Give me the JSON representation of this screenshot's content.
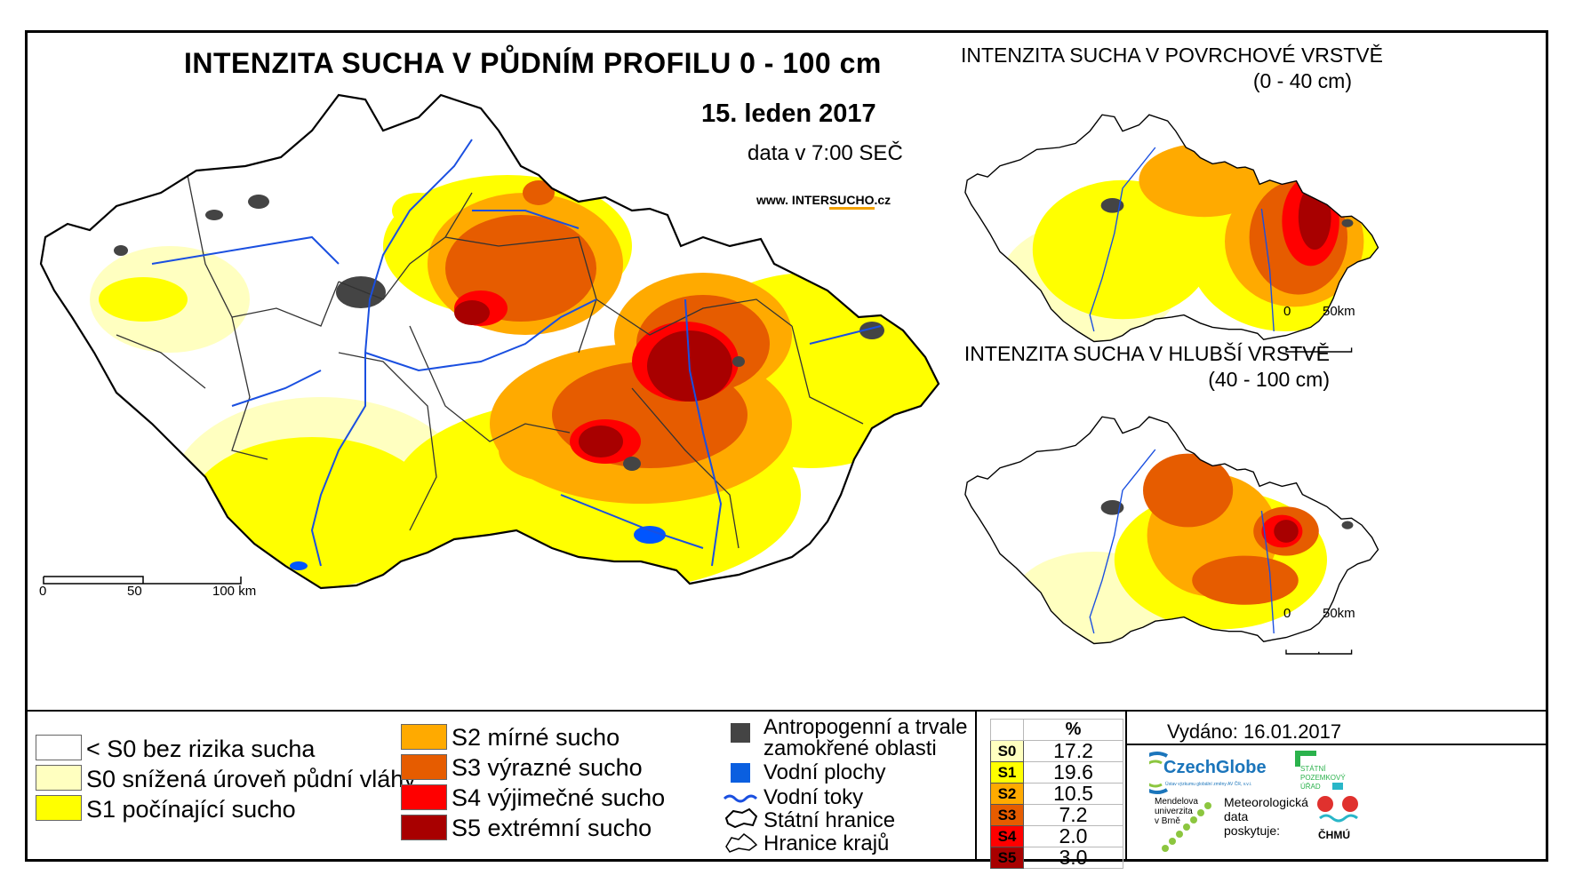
{
  "header": {
    "title": "INTENZITA SUCHA V PŮDNÍM PROFILU 0 - 100 cm",
    "date": "15. leden 2017",
    "time": "data v 7:00 SEČ",
    "web_prefix": "www. INTER",
    "web_accent": "SUCHO",
    "web_suffix": ".cz"
  },
  "inset_top": {
    "title": "INTENZITA SUCHA V POVRCHOVÉ VRSTVĚ",
    "subtitle": "(0 - 40 cm)",
    "scale_0": "0",
    "scale_1": "50km"
  },
  "inset_bottom": {
    "title": "INTENZITA SUCHA V HLUBŠÍ VRSTVĚ",
    "subtitle": "(40 - 100 cm)",
    "scale_0": "0",
    "scale_1": "50km"
  },
  "main_scale": {
    "l0": "0",
    "l1": "50",
    "l2": "100 km"
  },
  "legend": {
    "classes": [
      {
        "label": "< S0 bez rizika sucha",
        "color": "#ffffff"
      },
      {
        "label": "S0 snížená úroveň půdní vláhy",
        "color": "#ffffc0"
      },
      {
        "label": "S1 počínající sucho",
        "color": "#ffff00"
      },
      {
        "label": "S2 mírné sucho",
        "color": "#ffaa00"
      },
      {
        "label": "S3 výrazné sucho",
        "color": "#e65c00"
      },
      {
        "label": "S4 výjimečné sucho",
        "color": "#ff0000"
      },
      {
        "label": "S5 extrémní sucho",
        "color": "#a80000"
      }
    ],
    "symbols": {
      "anthropogenic_1": "Antropogenní a trvale",
      "anthropogenic_2": "zamokřené oblasti",
      "water": "Vodní plochy",
      "rivers": "Vodní toky",
      "border": "Státní hranice",
      "regions": "Hranice krajů"
    }
  },
  "stats": {
    "header": "%",
    "rows": [
      {
        "cls": "S0",
        "value": "17.2",
        "color": "#ffffc0"
      },
      {
        "cls": "S1",
        "value": "19.6",
        "color": "#ffff00"
      },
      {
        "cls": "S2",
        "value": "10.5",
        "color": "#ffaa00"
      },
      {
        "cls": "S3",
        "value": "7.2",
        "color": "#e65c00"
      },
      {
        "cls": "S4",
        "value": "2.0",
        "color": "#ff0000"
      },
      {
        "cls": "S5",
        "value": "3.0",
        "color": "#a80000"
      }
    ]
  },
  "issued": "Vydáno: 16.01.2017",
  "logos": {
    "czechglobe": "CzechGlobe",
    "czechglobe_sub": "Ústav výzkumu globální změny AV ČR, v.v.i.",
    "spu_1": "STÁTNÍ",
    "spu_2": "POZEMKOVÝ",
    "spu_3": "ÚŘAD",
    "mendel_1": "Mendelova",
    "mendel_2": "univerzita",
    "mendel_3": "v Brně",
    "met_1": "Meteorologická",
    "met_2": "data",
    "met_3": "poskytuje:",
    "chmu": "ČHMÚ"
  }
}
